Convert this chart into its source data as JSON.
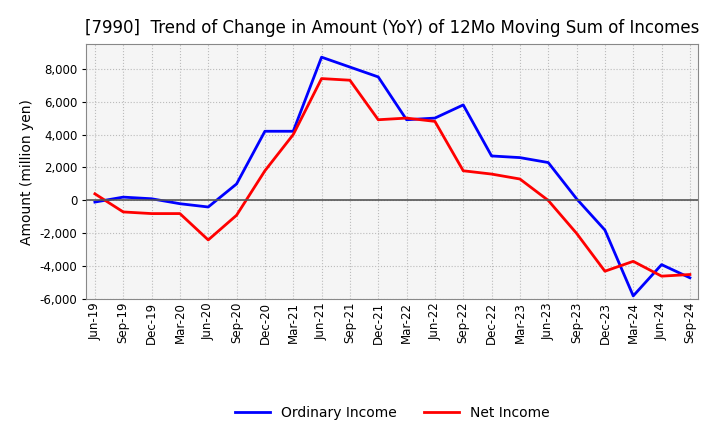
{
  "title": "[7990]  Trend of Change in Amount (YoY) of 12Mo Moving Sum of Incomes",
  "ylabel": "Amount (million yen)",
  "x_labels": [
    "Jun-19",
    "Sep-19",
    "Dec-19",
    "Mar-20",
    "Jun-20",
    "Sep-20",
    "Dec-20",
    "Mar-21",
    "Jun-21",
    "Sep-21",
    "Dec-21",
    "Mar-22",
    "Jun-22",
    "Sep-22",
    "Dec-22",
    "Mar-23",
    "Jun-23",
    "Sep-23",
    "Dec-23",
    "Mar-24",
    "Jun-24",
    "Sep-24"
  ],
  "ordinary_income": [
    -100,
    200,
    100,
    -200,
    -400,
    1000,
    4200,
    4200,
    8700,
    8100,
    7500,
    4900,
    5000,
    5800,
    2700,
    2600,
    2300,
    100,
    -1800,
    -5800,
    -3900,
    -4700
  ],
  "net_income": [
    400,
    -700,
    -800,
    -800,
    -2400,
    -900,
    1800,
    4000,
    7400,
    7300,
    4900,
    5000,
    4800,
    1800,
    1600,
    1300,
    0,
    -2000,
    -4300,
    -3700,
    -4600,
    -4500
  ],
  "ordinary_color": "#0000FF",
  "net_color": "#FF0000",
  "ylim": [
    -6000,
    9500
  ],
  "yticks": [
    -6000,
    -4000,
    -2000,
    0,
    2000,
    4000,
    6000,
    8000
  ],
  "background_color": "#FFFFFF",
  "plot_bg_color": "#F5F5F5",
  "grid_color": "#BBBBBB",
  "legend_labels": [
    "Ordinary Income",
    "Net Income"
  ],
  "title_fontsize": 12,
  "label_fontsize": 10,
  "tick_fontsize": 8.5,
  "line_width": 2.0
}
